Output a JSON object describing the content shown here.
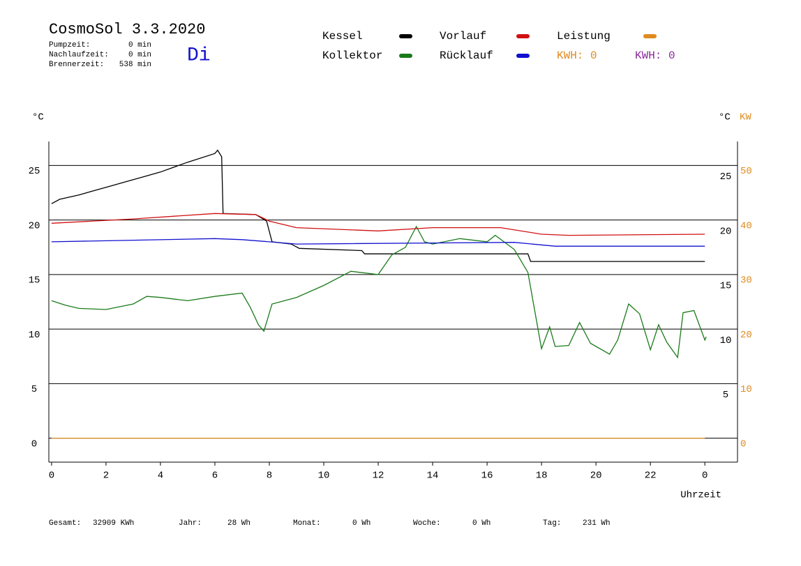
{
  "header": {
    "title": "CosmoSol 3.3.2020",
    "day": "Di",
    "info": [
      {
        "label": "Pumpzeit:",
        "value": "0 min"
      },
      {
        "label": "Nachlaufzeit:",
        "value": "0 min"
      },
      {
        "label": "Brennerzeit:",
        "value": "538 min"
      }
    ]
  },
  "kwh_labels": [
    {
      "text": "KWH: 0",
      "color": "#e08a1e"
    },
    {
      "text": "KWH: 0",
      "color": "#8a2a9a"
    }
  ],
  "footer": [
    {
      "label": "Gesamt:",
      "value": "32909 KWh"
    },
    {
      "label": "Jahr:",
      "value": "28 Wh"
    },
    {
      "label": "Monat:",
      "value": "0 Wh"
    },
    {
      "label": "Woche:",
      "value": "0 Wh"
    },
    {
      "label": "Tag:",
      "value": "231 Wh"
    }
  ],
  "chart_data": {
    "type": "line",
    "y_label": "°C",
    "y2_label": "°C",
    "kw_label": "KW",
    "x_label": "Uhrzeit",
    "xlim": [
      -0.1,
      25.2
    ],
    "xticks": [
      0,
      2,
      4,
      6,
      8,
      10,
      12,
      14,
      16,
      18,
      20,
      22,
      {
        "value": 24,
        "label": "0"
      }
    ],
    "ylim": [
      -2.2,
      27.2
    ],
    "yticks": [
      0,
      5,
      10,
      15,
      20,
      25
    ],
    "y2lim": [
      -2.2,
      27.2
    ],
    "y2ticks": [
      25,
      20,
      15,
      10,
      5
    ],
    "kwlim": [
      -4.4,
      54.4
    ],
    "kwticks": [
      0,
      10,
      20,
      30,
      40,
      50
    ],
    "grid": true,
    "series": [
      {
        "name": "Kessel",
        "color": "#000000",
        "x": [
          0,
          0.3,
          1,
          2,
          3,
          4,
          5,
          6,
          6.1,
          6.25,
          6.3,
          7.5,
          7.9,
          8.1,
          8.8,
          9.1,
          11.4,
          11.5,
          17.5,
          17.6,
          24
        ],
        "values": [
          21.5,
          21.9,
          22.3,
          23.0,
          23.7,
          24.4,
          25.3,
          26.1,
          26.4,
          25.8,
          20.6,
          20.5,
          19.9,
          18.0,
          17.8,
          17.4,
          17.2,
          16.9,
          16.9,
          16.2,
          16.2
        ]
      },
      {
        "name": "Kollektor",
        "color": "#1a7a1a",
        "x": [
          0,
          0.5,
          1,
          2,
          3,
          3.5,
          4,
          5,
          6,
          7,
          7.3,
          7.6,
          7.8,
          8.1,
          9,
          10,
          11,
          12,
          12.5,
          13,
          13.4,
          13.7,
          14,
          15,
          16,
          16.3,
          17,
          17.5,
          17.8,
          18,
          18.3,
          18.5,
          19,
          19.4,
          19.8,
          20.5,
          20.8,
          21.2,
          21.6,
          22,
          22.3,
          22.6,
          23,
          23.2,
          23.6,
          24,
          24.05
        ],
        "values": [
          12.6,
          12.2,
          11.9,
          11.8,
          12.3,
          13.0,
          12.9,
          12.6,
          13.0,
          13.3,
          12.0,
          10.4,
          9.8,
          12.3,
          12.9,
          14.0,
          15.3,
          15.0,
          16.8,
          17.5,
          19.4,
          18.0,
          17.8,
          18.3,
          18.0,
          18.6,
          17.3,
          15.2,
          11.0,
          8.2,
          10.2,
          8.4,
          8.5,
          10.6,
          8.7,
          7.7,
          9.0,
          12.3,
          11.4,
          8.1,
          10.4,
          8.8,
          7.4,
          11.5,
          11.7,
          9.0,
          9.3
        ]
      },
      {
        "name": "Vorlauf",
        "color": "#d01010",
        "x": [
          0,
          3,
          6,
          7.5,
          8,
          9,
          12,
          14,
          16.5,
          18,
          19,
          24
        ],
        "values": [
          19.7,
          20.1,
          20.6,
          20.5,
          19.9,
          19.3,
          19.0,
          19.3,
          19.3,
          18.7,
          18.6,
          18.7
        ]
      },
      {
        "name": "Rücklauf",
        "color": "#1010d0",
        "x": [
          0,
          6,
          7,
          8,
          9,
          17,
          18.5,
          24
        ],
        "values": [
          18.0,
          18.3,
          18.2,
          18.0,
          17.8,
          17.95,
          17.6,
          17.6
        ]
      },
      {
        "name": "Leistung",
        "color": "#e08a1e",
        "axis": "kw",
        "x": [
          0,
          24
        ],
        "values": [
          0,
          0
        ]
      }
    ]
  }
}
